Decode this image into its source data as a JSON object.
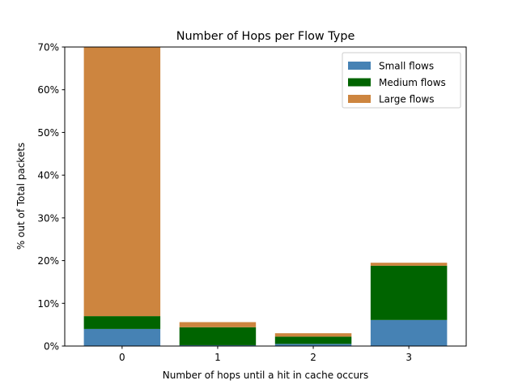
{
  "chart_data": {
    "type": "bar",
    "stacked": true,
    "title": "Number of Hops per Flow Type",
    "xlabel": "Number of hops until a hit in cache occurs",
    "ylabel": "% out of Total packets",
    "categories": [
      "0",
      "1",
      "2",
      "3"
    ],
    "ylim": [
      0,
      70
    ],
    "yticks": [
      0,
      10,
      20,
      30,
      40,
      50,
      60,
      70
    ],
    "ytick_labels": [
      "0%",
      "10%",
      "20%",
      "30%",
      "40%",
      "50%",
      "60%",
      "70%"
    ],
    "grid": false,
    "legend_position": "top-right",
    "series": [
      {
        "name": "Small flows",
        "color": "#4682b4",
        "values": [
          4.0,
          0.2,
          0.5,
          6.1
        ]
      },
      {
        "name": "Medium flows",
        "color": "#006400",
        "values": [
          3.0,
          4.2,
          1.7,
          12.7
        ]
      },
      {
        "name": "Large flows",
        "color": "#cd853f",
        "values": [
          63.0,
          1.2,
          0.8,
          0.7
        ]
      }
    ]
  }
}
